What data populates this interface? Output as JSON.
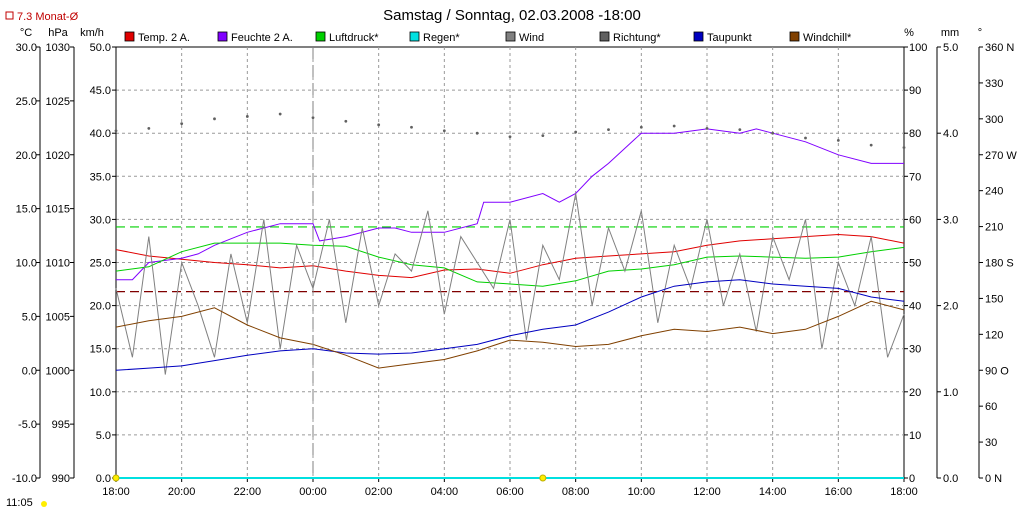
{
  "header": {
    "title": "Samstag / Sonntag, 02.03.2008  -18:00",
    "monat_label": "7.3 Monat-Ø",
    "time_label": "11:05"
  },
  "chart_data": {
    "type": "line",
    "x_tick_labels": [
      "18:00",
      "20:00",
      "22:00",
      "00:00",
      "02:00",
      "04:00",
      "06:00",
      "08:00",
      "10:00",
      "12:00",
      "14:00",
      "16:00",
      "18:00"
    ],
    "x_range_hours": [
      0,
      24
    ],
    "axes": {
      "temp": {
        "unit": "°C",
        "ticks": [
          "-10.0",
          "-5.0",
          "0.0",
          "5.0",
          "10.0",
          "15.0",
          "20.0",
          "25.0",
          "30.0"
        ],
        "range": [
          -10,
          30
        ]
      },
      "pressure": {
        "unit": "hPa",
        "ticks": [
          "990",
          "995",
          "1000",
          "1005",
          "1010",
          "1015",
          "1020",
          "1025",
          "1030"
        ],
        "range": [
          990,
          1030
        ]
      },
      "wind": {
        "unit": "km/h",
        "ticks": [
          "0.0",
          "5.0",
          "10.0",
          "15.0",
          "20.0",
          "25.0",
          "30.0",
          "35.0",
          "40.0",
          "45.0",
          "50.0"
        ],
        "range": [
          0,
          50
        ]
      },
      "humidity": {
        "unit": "%",
        "ticks": [
          "0",
          "10",
          "20",
          "30",
          "40",
          "50",
          "60",
          "70",
          "80",
          "90",
          "100"
        ],
        "range": [
          0,
          100
        ]
      },
      "rain": {
        "unit": "mm",
        "ticks": [
          "0.0",
          "1.0",
          "2.0",
          "3.0",
          "4.0",
          "5.0"
        ],
        "range": [
          0,
          5
        ]
      },
      "direction": {
        "unit": "°",
        "ticks": [
          "0  N",
          "30",
          "60",
          "90  O",
          "120",
          "150",
          "180 S",
          "210",
          "240",
          "270 W",
          "300",
          "330",
          "360 N"
        ],
        "range": [
          0,
          360
        ]
      }
    },
    "legend": [
      "Temp. 2 A.",
      "Feuchte 2 A.",
      "Luftdruck*",
      "Regen*",
      "Wind",
      "Richtung*",
      "Taupunkt",
      "Windchill*"
    ],
    "series": [
      {
        "name": "Temp. 2 A.",
        "color": "#e00000",
        "axis": "temp",
        "x": [
          0,
          1,
          2,
          3,
          4,
          5,
          6,
          7,
          8,
          9,
          10,
          11,
          12,
          13,
          14,
          15,
          16,
          17,
          18,
          19,
          20,
          21,
          22,
          23,
          24
        ],
        "y": [
          11.2,
          10.6,
          10.3,
          10.0,
          9.8,
          9.5,
          9.7,
          9.2,
          8.8,
          8.6,
          9.3,
          9.4,
          9.0,
          9.8,
          10.4,
          10.6,
          10.8,
          11.0,
          11.6,
          12.0,
          12.2,
          12.4,
          12.6,
          12.4,
          11.8
        ]
      },
      {
        "name": "Feuchte 2 A.",
        "color": "#8000ff",
        "axis": "humidity",
        "x": [
          0,
          0.5,
          1,
          2,
          2.5,
          3,
          4,
          5,
          6,
          6.2,
          7,
          8,
          8.5,
          9,
          10,
          11,
          11.2,
          12,
          13,
          13.5,
          14,
          14.5,
          15,
          16,
          17,
          18,
          19,
          19.5,
          20,
          21,
          22,
          23,
          24
        ],
        "y": [
          46,
          46,
          50,
          51,
          52,
          54,
          57,
          59,
          59,
          55,
          56,
          58,
          58,
          57,
          57,
          59,
          64,
          64,
          66,
          64,
          66,
          70,
          73,
          80,
          80,
          81,
          80,
          81,
          80,
          78,
          75,
          73,
          73
        ]
      },
      {
        "name": "Luftdruck*",
        "color": "#00d000",
        "axis": "pressure",
        "x": [
          0,
          1,
          2,
          3,
          4,
          5,
          6,
          7,
          8,
          9,
          10,
          11,
          12,
          13,
          14,
          15,
          16,
          17,
          18,
          19,
          20,
          21,
          22,
          23,
          24
        ],
        "y": [
          1009.2,
          1009.6,
          1011.0,
          1011.8,
          1011.8,
          1011.8,
          1011.6,
          1011.5,
          1010.5,
          1009.8,
          1009.5,
          1008.2,
          1008.0,
          1007.8,
          1008.3,
          1009.2,
          1009.4,
          1009.8,
          1010.5,
          1010.6,
          1010.5,
          1010.4,
          1010.5,
          1011.0,
          1011.4
        ]
      },
      {
        "name": "Regen*",
        "color": "#00e0e0",
        "axis": "rain",
        "x": [
          0,
          24
        ],
        "y": [
          0,
          0
        ]
      },
      {
        "name": "Wind",
        "color": "#808080",
        "axis": "wind",
        "x": [
          0,
          0.5,
          1,
          1.5,
          2,
          2.5,
          3,
          3.5,
          4,
          4.5,
          5,
          5.5,
          6,
          6.5,
          7,
          7.5,
          8,
          8.5,
          9,
          9.5,
          10,
          10.5,
          11,
          11.5,
          12,
          12.5,
          13,
          13.5,
          14,
          14.5,
          15,
          15.5,
          16,
          16.5,
          17,
          17.5,
          18,
          18.5,
          19,
          19.5,
          20,
          20.5,
          21,
          21.5,
          22,
          22.5,
          23,
          23.5,
          24
        ],
        "y": [
          22,
          14,
          28,
          12,
          25,
          20,
          14,
          26,
          18,
          30,
          15,
          27,
          22,
          30,
          18,
          29,
          20,
          26,
          24,
          31,
          19,
          28,
          25,
          22,
          30,
          16,
          27,
          23,
          33,
          20,
          29,
          24,
          31,
          18,
          27,
          22,
          30,
          20,
          26,
          17,
          28,
          23,
          30,
          15,
          25,
          20,
          28,
          14,
          19
        ]
      },
      {
        "name": "Richtung*",
        "color": "#606060",
        "axis": "direction",
        "x": [
          0,
          1,
          2,
          3,
          4,
          5,
          6,
          7,
          8,
          9,
          10,
          11,
          12,
          13,
          14,
          15,
          16,
          17,
          18,
          19,
          20,
          21,
          22,
          23,
          24
        ],
        "y": [
          290,
          292,
          296,
          300,
          302,
          304,
          301,
          298,
          295,
          293,
          290,
          288,
          285,
          286,
          289,
          291,
          293,
          294,
          292,
          291,
          288,
          284,
          282,
          278,
          276
        ]
      },
      {
        "name": "Taupunkt",
        "color": "#0000c0",
        "axis": "temp",
        "x": [
          0,
          1,
          2,
          3,
          4,
          5,
          6,
          7,
          8,
          9,
          10,
          11,
          12,
          13,
          14,
          15,
          16,
          17,
          18,
          19,
          20,
          21,
          22,
          23,
          24
        ],
        "y": [
          0.0,
          0.2,
          0.4,
          0.9,
          1.4,
          1.8,
          2.0,
          1.6,
          1.5,
          1.6,
          2.0,
          2.4,
          3.2,
          3.8,
          4.2,
          5.4,
          6.8,
          7.8,
          8.2,
          8.4,
          8.0,
          7.8,
          7.6,
          6.8,
          6.4
        ]
      },
      {
        "name": "Windchill*",
        "color": "#804000",
        "axis": "temp",
        "x": [
          0,
          1,
          2,
          3,
          4,
          5,
          6,
          7,
          8,
          9,
          10,
          11,
          12,
          13,
          14,
          15,
          16,
          17,
          18,
          19,
          20,
          21,
          22,
          23,
          24
        ],
        "y": [
          4.0,
          4.6,
          5.0,
          5.8,
          4.2,
          3.0,
          2.4,
          1.4,
          0.2,
          0.6,
          1.0,
          1.8,
          2.8,
          2.6,
          2.2,
          2.4,
          3.2,
          3.8,
          3.6,
          4.0,
          3.4,
          3.8,
          5.0,
          6.4,
          5.6
        ]
      }
    ],
    "reference_lines": [
      {
        "color": "#00d000",
        "axis": "pressure",
        "value": 1013.3
      },
      {
        "color": "#800000",
        "axis": "temp",
        "value": 7.3
      }
    ],
    "vertical_marker_x": 6,
    "sun_markers_x": [
      0,
      13.0
    ],
    "grid": true
  }
}
